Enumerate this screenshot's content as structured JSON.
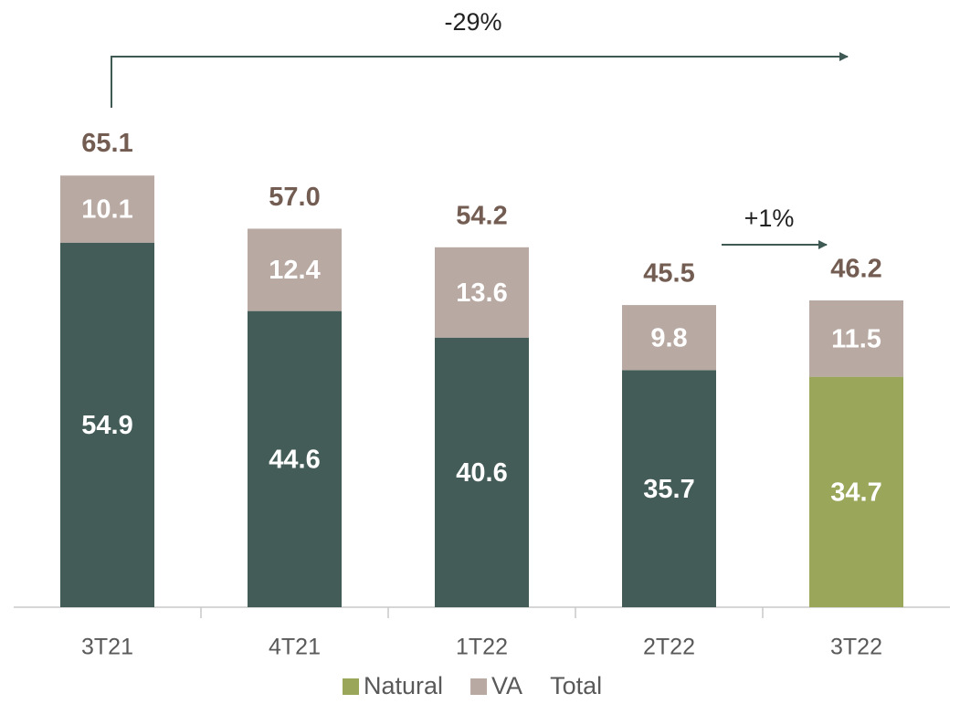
{
  "chart_data": {
    "type": "stacked_bar",
    "categories": [
      "3T21",
      "4T21",
      "1T22",
      "2T22",
      "3T22"
    ],
    "series": [
      {
        "name": "Natural",
        "color": "#9aa65a",
        "colors": [
          "#435c57",
          "#435c57",
          "#435c57",
          "#435c57",
          "#9aa65a"
        ],
        "values": [
          54.9,
          44.6,
          40.6,
          35.7,
          34.7
        ]
      },
      {
        "name": "VA",
        "color": "#b8a9a2",
        "values": [
          10.1,
          12.4,
          13.6,
          9.8,
          11.5
        ]
      },
      {
        "name": "Total",
        "label_color": "#735d52",
        "values": [
          65.1,
          57.0,
          54.2,
          45.5,
          46.2
        ],
        "value_labels": [
          "65.1",
          "57.0",
          "54.2",
          "45.5",
          "46.2"
        ]
      }
    ],
    "annotations": [
      {
        "text": "-29%"
      },
      {
        "text": "+1%"
      }
    ]
  }
}
